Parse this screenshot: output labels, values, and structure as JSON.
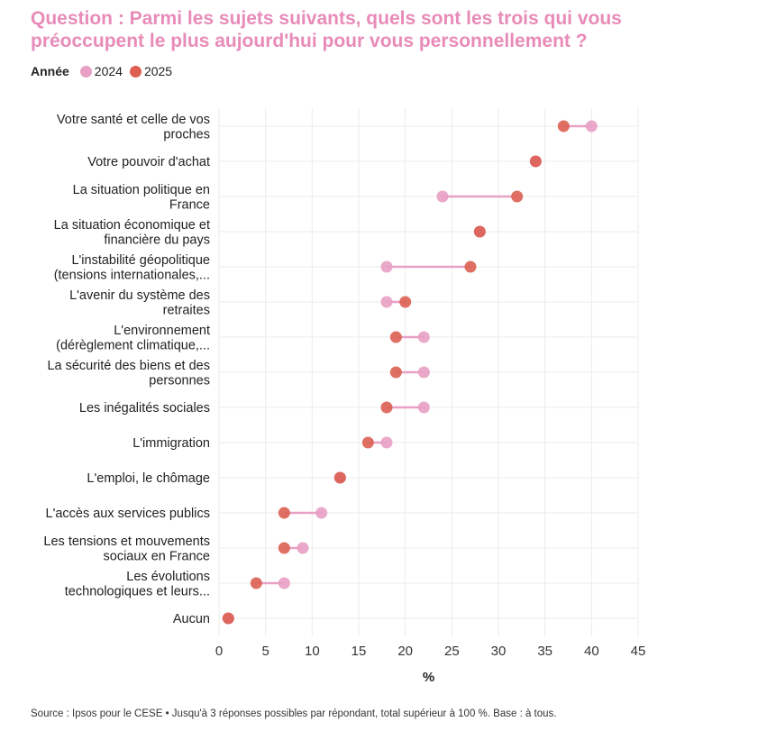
{
  "title": "Question : Parmi les sujets suivants, quels sont les trois qui vous préoccupent le plus aujourd'hui pour vous personnellement ?",
  "legend": {
    "title": "Année",
    "items": [
      {
        "label": "2024",
        "color": "#e8a0c4"
      },
      {
        "label": "2025",
        "color": "#dc5f52"
      }
    ]
  },
  "source": "Source : Ipsos pour le CESE • Jusqu'à 3 réponses possibles par répondant, total supérieur à 100 %. Base : à tous.",
  "chart_data": {
    "type": "dumbbell",
    "xlabel": "%",
    "xlim": [
      0,
      45
    ],
    "xticks": [
      0,
      5,
      10,
      15,
      20,
      25,
      30,
      35,
      40,
      45
    ],
    "grid": true,
    "legend_position": "top-left",
    "categories": [
      [
        "Votre santé et celle de vos",
        "proches"
      ],
      [
        "Votre pouvoir d'achat"
      ],
      [
        "La situation politique en",
        "France"
      ],
      [
        "La situation économique et",
        "financière du pays"
      ],
      [
        "L'instabilité géopolitique",
        "(tensions internationales,..."
      ],
      [
        "L'avenir du système des",
        "retraites"
      ],
      [
        "L'environnement",
        "(dérèglement climatique,..."
      ],
      [
        "La sécurité des biens et des",
        "personnes"
      ],
      [
        "Les inégalités sociales"
      ],
      [
        "L'immigration"
      ],
      [
        "L'emploi, le chômage"
      ],
      [
        "L'accès aux services publics"
      ],
      [
        "Les tensions et mouvements",
        "sociaux en France"
      ],
      [
        "Les évolutions",
        "technologiques et leurs..."
      ],
      [
        "Aucun"
      ]
    ],
    "series": [
      {
        "name": "2024",
        "values": [
          40,
          34,
          24,
          28,
          18,
          18,
          22,
          22,
          22,
          18,
          13,
          11,
          9,
          7,
          1
        ]
      },
      {
        "name": "2025",
        "values": [
          37,
          34,
          32,
          28,
          27,
          20,
          19,
          19,
          18,
          16,
          13,
          7,
          7,
          4,
          1
        ]
      }
    ]
  }
}
